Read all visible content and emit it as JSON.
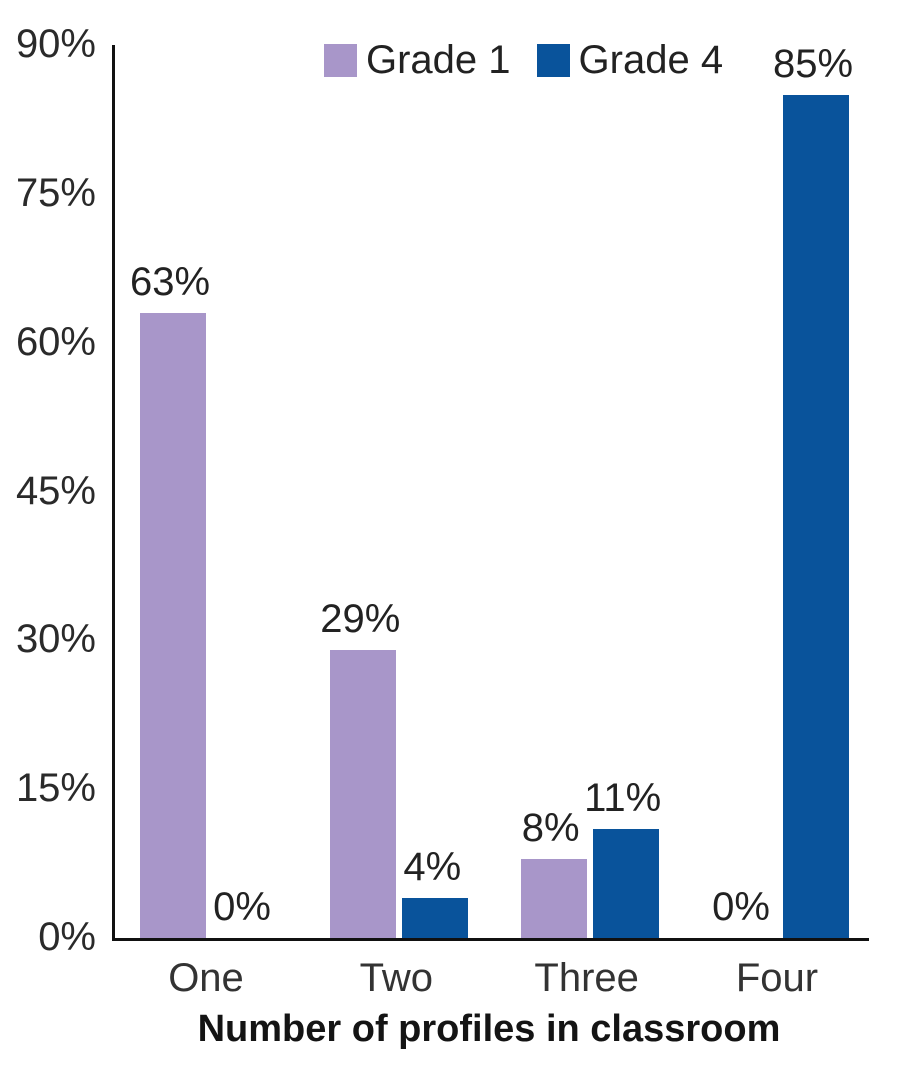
{
  "chart_data": {
    "type": "bar",
    "title": "",
    "xlabel": "Number of profiles in classroom",
    "ylabel": "",
    "categories": [
      "One",
      "Two",
      "Three",
      "Four"
    ],
    "series": [
      {
        "name": "Grade 1",
        "color": "#a896c9",
        "values": [
          63,
          29,
          8,
          0
        ]
      },
      {
        "name": "Grade 4",
        "color": "#09539b",
        "values": [
          0,
          4,
          11,
          85
        ]
      }
    ],
    "value_suffix": "%",
    "y_ticks": [
      0,
      15,
      30,
      45,
      60,
      75,
      90
    ],
    "ylim": [
      0,
      90
    ],
    "grid": false,
    "legend_position": "top-center",
    "axis_color": "#111111",
    "value_labels_shown": true
  }
}
